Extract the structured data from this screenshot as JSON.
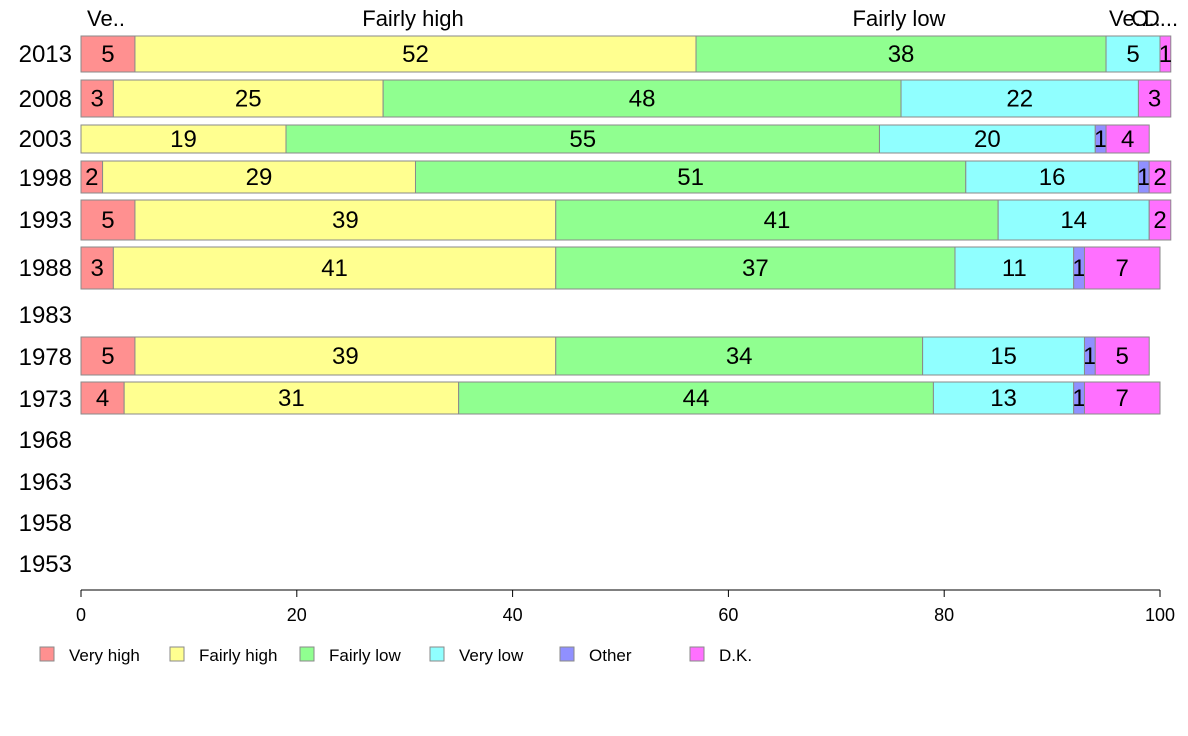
{
  "chart_data": {
    "type": "bar",
    "orientation": "horizontal",
    "stacked": true,
    "categories": [
      "2013",
      "2008",
      "2003",
      "1998",
      "1993",
      "1988",
      "1983",
      "1978",
      "1973",
      "1968",
      "1963",
      "1958",
      "1953"
    ],
    "series": [
      {
        "name": "Very high",
        "color": "#ff9090",
        "values": [
          5,
          3,
          null,
          2,
          5,
          3,
          null,
          5,
          4,
          null,
          null,
          null,
          null
        ]
      },
      {
        "name": "Fairly high",
        "color": "#ffff90",
        "values": [
          52,
          25,
          19,
          29,
          39,
          41,
          null,
          39,
          31,
          null,
          null,
          null,
          null
        ]
      },
      {
        "name": "Fairly low",
        "color": "#90ff90",
        "values": [
          38,
          48,
          55,
          51,
          41,
          37,
          null,
          34,
          44,
          null,
          null,
          null,
          null
        ]
      },
      {
        "name": "Very low",
        "color": "#90ffff",
        "values": [
          5,
          22,
          20,
          16,
          14,
          11,
          null,
          15,
          13,
          null,
          null,
          null,
          null
        ]
      },
      {
        "name": "Other",
        "color": "#9090ff",
        "values": [
          null,
          null,
          1,
          1,
          null,
          1,
          null,
          1,
          1,
          null,
          null,
          null,
          null
        ]
      },
      {
        "name": "D.K.",
        "color": "#ff70ff",
        "values": [
          1,
          3,
          4,
          2,
          2,
          7,
          null,
          5,
          7,
          null,
          null,
          null,
          null
        ]
      }
    ],
    "segment_labels": [
      [
        "5",
        "52",
        "38",
        "5",
        "",
        "1"
      ],
      [
        "3",
        "25",
        "48",
        "22",
        "",
        "3"
      ],
      [
        "",
        "19",
        "55",
        "20",
        "1",
        "4"
      ],
      [
        "2",
        "29",
        "51",
        "16",
        "1",
        "2"
      ],
      [
        "5",
        "39",
        "41",
        "14",
        "",
        "2"
      ],
      [
        "3",
        "41",
        "37",
        "11",
        "1",
        "7"
      ],
      [
        "",
        "",
        "",
        "",
        "",
        ""
      ],
      [
        "5",
        "39",
        "34",
        "15",
        "1",
        "5"
      ],
      [
        "4",
        "31",
        "44",
        "13",
        "1",
        "7"
      ],
      [
        "",
        "",
        "",
        "",
        "",
        ""
      ],
      [
        "",
        "",
        "",
        "",
        "",
        ""
      ],
      [
        "",
        "",
        "",
        "",
        "",
        ""
      ],
      [
        "",
        "",
        "",
        "",
        "",
        ""
      ]
    ],
    "top_labels": [
      "Ve..",
      "Fairly high",
      "Fairly low",
      "Ve..",
      "O..",
      "D..."
    ],
    "xlim": [
      0,
      100
    ],
    "xticks": [
      "0",
      "20",
      "40",
      "60",
      "80",
      "100"
    ],
    "grid": false,
    "legend_position": "bottom"
  }
}
